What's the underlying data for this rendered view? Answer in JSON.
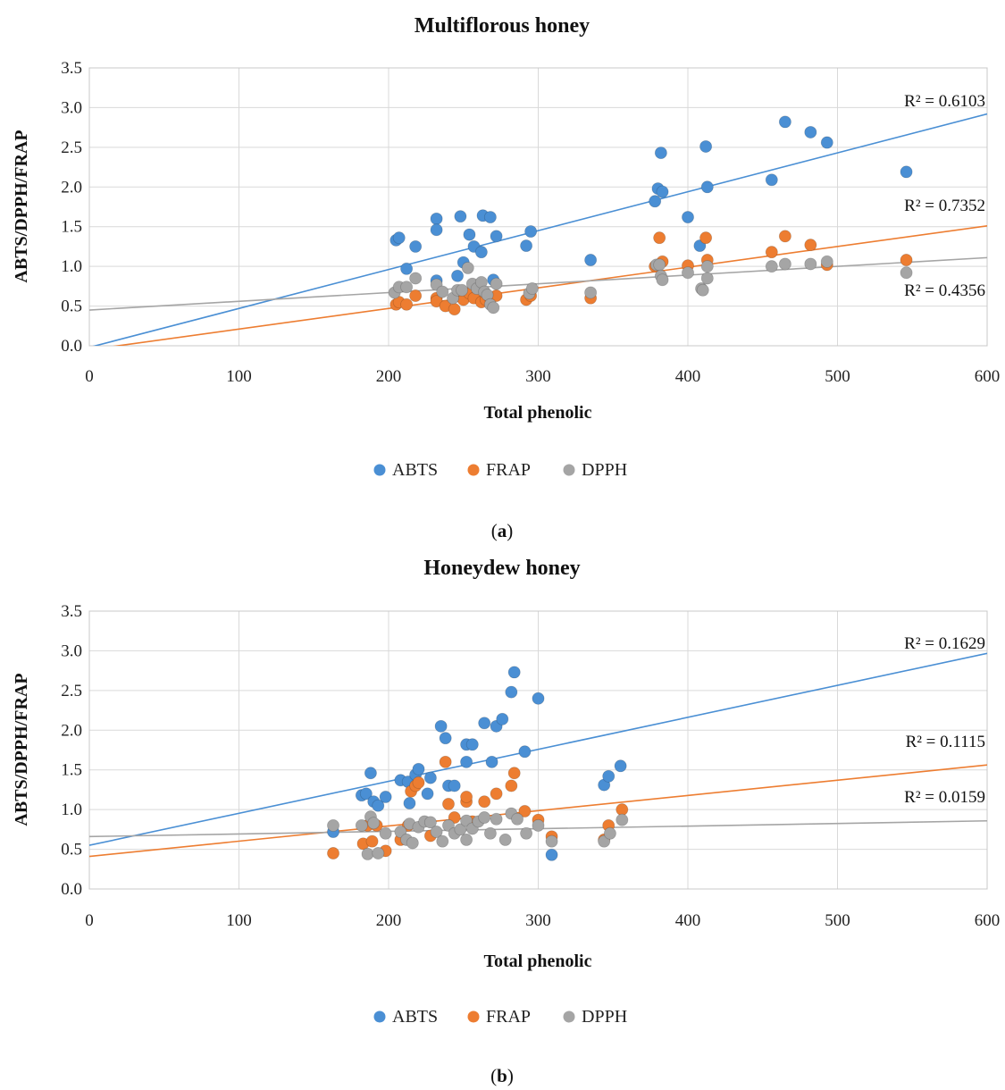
{
  "colors": {
    "ABTS": "#4a8fd4",
    "FRAP": "#ed7d31",
    "DPPH": "#a5a5a5"
  },
  "chart_data": [
    {
      "type": "scatter",
      "title": "Multiflorous honey",
      "panel_label": "a",
      "xlabel": "Total phenolic",
      "ylabel": "ABTS/DPPH/FRAP",
      "xlim": [
        0,
        600
      ],
      "ylim": [
        0,
        3.5
      ],
      "xticks": [
        "0",
        "100",
        "200",
        "300",
        "400",
        "500",
        "600"
      ],
      "yticks": [
        "0.0",
        "0.5",
        "1.0",
        "1.5",
        "2.0",
        "2.5",
        "3.0",
        "3.5"
      ],
      "grid": true,
      "legend_position": "bottom-center",
      "series": [
        {
          "name": "ABTS",
          "trendline": {
            "intercept": -0.02,
            "slope": 0.0049,
            "r2_label": "R² = 0.6103"
          },
          "points": [
            [
              205,
              1.33
            ],
            [
              207,
              1.36
            ],
            [
              212,
              0.97
            ],
            [
              218,
              1.25
            ],
            [
              232,
              1.6
            ],
            [
              232,
              1.46
            ],
            [
              232,
              0.82
            ],
            [
              248,
              1.63
            ],
            [
              246,
              0.88
            ],
            [
              250,
              1.05
            ],
            [
              254,
              1.4
            ],
            [
              257,
              1.25
            ],
            [
              262,
              1.18
            ],
            [
              263,
              1.64
            ],
            [
              268,
              1.62
            ],
            [
              270,
              0.83
            ],
            [
              272,
              1.38
            ],
            [
              292,
              1.26
            ],
            [
              295,
              1.44
            ],
            [
              335,
              1.08
            ],
            [
              378,
              1.82
            ],
            [
              380,
              1.98
            ],
            [
              382,
              2.43
            ],
            [
              383,
              1.94
            ],
            [
              400,
              1.62
            ],
            [
              408,
              1.26
            ],
            [
              412,
              2.51
            ],
            [
              413,
              2.0
            ],
            [
              456,
              2.09
            ],
            [
              465,
              2.82
            ],
            [
              482,
              2.69
            ],
            [
              493,
              2.56
            ],
            [
              546,
              2.19
            ]
          ]
        },
        {
          "name": "FRAP",
          "trendline": {
            "intercept": -0.05,
            "slope": 0.0026,
            "r2_label": "R² = 0.7352"
          },
          "points": [
            [
              205,
              0.52
            ],
            [
              207,
              0.55
            ],
            [
              212,
              0.52
            ],
            [
              218,
              0.63
            ],
            [
              232,
              0.6
            ],
            [
              232,
              0.56
            ],
            [
              238,
              0.5
            ],
            [
              244,
              0.46
            ],
            [
              248,
              0.62
            ],
            [
              250,
              0.58
            ],
            [
              254,
              0.66
            ],
            [
              257,
              0.6
            ],
            [
              262,
              0.55
            ],
            [
              265,
              0.58
            ],
            [
              268,
              0.6
            ],
            [
              272,
              0.63
            ],
            [
              292,
              0.58
            ],
            [
              295,
              0.63
            ],
            [
              335,
              0.6
            ],
            [
              378,
              1.0
            ],
            [
              381,
              1.36
            ],
            [
              383,
              1.06
            ],
            [
              400,
              1.01
            ],
            [
              412,
              1.36
            ],
            [
              413,
              1.08
            ],
            [
              456,
              1.18
            ],
            [
              465,
              1.38
            ],
            [
              482,
              1.27
            ],
            [
              493,
              1.02
            ],
            [
              546,
              1.08
            ]
          ]
        },
        {
          "name": "DPPH",
          "trendline": {
            "intercept": 0.45,
            "slope": 0.0011,
            "r2_label": "R² = 0.4356"
          },
          "points": [
            [
              204,
              0.67
            ],
            [
              207,
              0.74
            ],
            [
              212,
              0.74
            ],
            [
              218,
              0.85
            ],
            [
              232,
              0.77
            ],
            [
              236,
              0.68
            ],
            [
              243,
              0.6
            ],
            [
              246,
              0.7
            ],
            [
              249,
              0.7
            ],
            [
              253,
              0.98
            ],
            [
              256,
              0.78
            ],
            [
              259,
              0.72
            ],
            [
              262,
              0.8
            ],
            [
              264,
              0.68
            ],
            [
              266,
              0.64
            ],
            [
              268,
              0.52
            ],
            [
              270,
              0.48
            ],
            [
              272,
              0.78
            ],
            [
              294,
              0.66
            ],
            [
              296,
              0.72
            ],
            [
              335,
              0.67
            ],
            [
              379,
              1.02
            ],
            [
              381,
              1.02
            ],
            [
              382,
              0.88
            ],
            [
              383,
              0.83
            ],
            [
              400,
              0.92
            ],
            [
              409,
              0.72
            ],
            [
              410,
              0.7
            ],
            [
              413,
              1.0
            ],
            [
              413,
              0.85
            ],
            [
              456,
              1.0
            ],
            [
              465,
              1.03
            ],
            [
              482,
              1.03
            ],
            [
              493,
              1.06
            ],
            [
              546,
              0.92
            ]
          ]
        }
      ]
    },
    {
      "type": "scatter",
      "title": "Honeydew honey",
      "panel_label": "b",
      "xlabel": "Total phenolic",
      "ylabel": "ABTS/DPPH/FRAP",
      "xlim": [
        0,
        600
      ],
      "ylim": [
        0,
        3.5
      ],
      "xticks": [
        "0",
        "100",
        "200",
        "300",
        "400",
        "500",
        "600"
      ],
      "yticks": [
        "0.0",
        "0.5",
        "1.0",
        "1.5",
        "2.0",
        "2.5",
        "3.0",
        "3.5"
      ],
      "grid": true,
      "legend_position": "bottom-center",
      "series": [
        {
          "name": "ABTS",
          "trendline": {
            "intercept": 0.55,
            "slope": 0.00403,
            "r2_label": "R² = 0.1629"
          },
          "points": [
            [
              163,
              0.72
            ],
            [
              182,
              1.18
            ],
            [
              185,
              1.2
            ],
            [
              188,
              1.46
            ],
            [
              190,
              1.1
            ],
            [
              193,
              1.05
            ],
            [
              198,
              1.16
            ],
            [
              208,
              1.37
            ],
            [
              213,
              1.35
            ],
            [
              214,
              1.08
            ],
            [
              218,
              1.44
            ],
            [
              220,
              1.51
            ],
            [
              226,
              1.2
            ],
            [
              228,
              1.4
            ],
            [
              235,
              2.05
            ],
            [
              238,
              1.9
            ],
            [
              240,
              1.3
            ],
            [
              244,
              1.3
            ],
            [
              252,
              1.82
            ],
            [
              252,
              1.6
            ],
            [
              256,
              1.82
            ],
            [
              264,
              2.09
            ],
            [
              269,
              1.6
            ],
            [
              272,
              2.05
            ],
            [
              276,
              2.14
            ],
            [
              282,
              2.48
            ],
            [
              284,
              2.73
            ],
            [
              291,
              1.73
            ],
            [
              300,
              2.4
            ],
            [
              309,
              0.43
            ],
            [
              344,
              1.31
            ],
            [
              347,
              1.42
            ],
            [
              355,
              1.55
            ]
          ]
        },
        {
          "name": "FRAP",
          "trendline": {
            "intercept": 0.41,
            "slope": 0.00192,
            "r2_label": "R² = 0.1115"
          },
          "points": [
            [
              163,
              0.45
            ],
            [
              183,
              0.57
            ],
            [
              186,
              0.8
            ],
            [
              189,
              0.6
            ],
            [
              192,
              0.8
            ],
            [
              198,
              0.48
            ],
            [
              208,
              0.62
            ],
            [
              213,
              0.8
            ],
            [
              215,
              1.23
            ],
            [
              218,
              1.3
            ],
            [
              220,
              1.34
            ],
            [
              228,
              0.67
            ],
            [
              238,
              1.6
            ],
            [
              240,
              1.07
            ],
            [
              244,
              0.9
            ],
            [
              252,
              1.1
            ],
            [
              252,
              1.16
            ],
            [
              256,
              0.85
            ],
            [
              264,
              1.1
            ],
            [
              272,
              1.2
            ],
            [
              282,
              1.3
            ],
            [
              284,
              1.46
            ],
            [
              291,
              0.98
            ],
            [
              300,
              0.87
            ],
            [
              309,
              0.66
            ],
            [
              344,
              0.62
            ],
            [
              347,
              0.8
            ],
            [
              356,
              1.0
            ]
          ]
        },
        {
          "name": "DPPH",
          "trendline": {
            "intercept": 0.66,
            "slope": 0.00033,
            "r2_label": "R² = 0.0159"
          },
          "points": [
            [
              163,
              0.8
            ],
            [
              182,
              0.8
            ],
            [
              186,
              0.44
            ],
            [
              188,
              0.91
            ],
            [
              190,
              0.83
            ],
            [
              193,
              0.45
            ],
            [
              198,
              0.7
            ],
            [
              208,
              0.72
            ],
            [
              212,
              0.62
            ],
            [
              214,
              0.82
            ],
            [
              216,
              0.58
            ],
            [
              220,
              0.78
            ],
            [
              224,
              0.85
            ],
            [
              228,
              0.84
            ],
            [
              232,
              0.72
            ],
            [
              236,
              0.6
            ],
            [
              240,
              0.8
            ],
            [
              244,
              0.7
            ],
            [
              248,
              0.75
            ],
            [
              252,
              0.62
            ],
            [
              252,
              0.86
            ],
            [
              256,
              0.76
            ],
            [
              260,
              0.85
            ],
            [
              264,
              0.9
            ],
            [
              268,
              0.7
            ],
            [
              272,
              0.88
            ],
            [
              278,
              0.62
            ],
            [
              282,
              0.95
            ],
            [
              286,
              0.88
            ],
            [
              292,
              0.7
            ],
            [
              300,
              0.8
            ],
            [
              309,
              0.6
            ],
            [
              344,
              0.6
            ],
            [
              348,
              0.7
            ],
            [
              356,
              0.87
            ]
          ]
        }
      ]
    }
  ]
}
